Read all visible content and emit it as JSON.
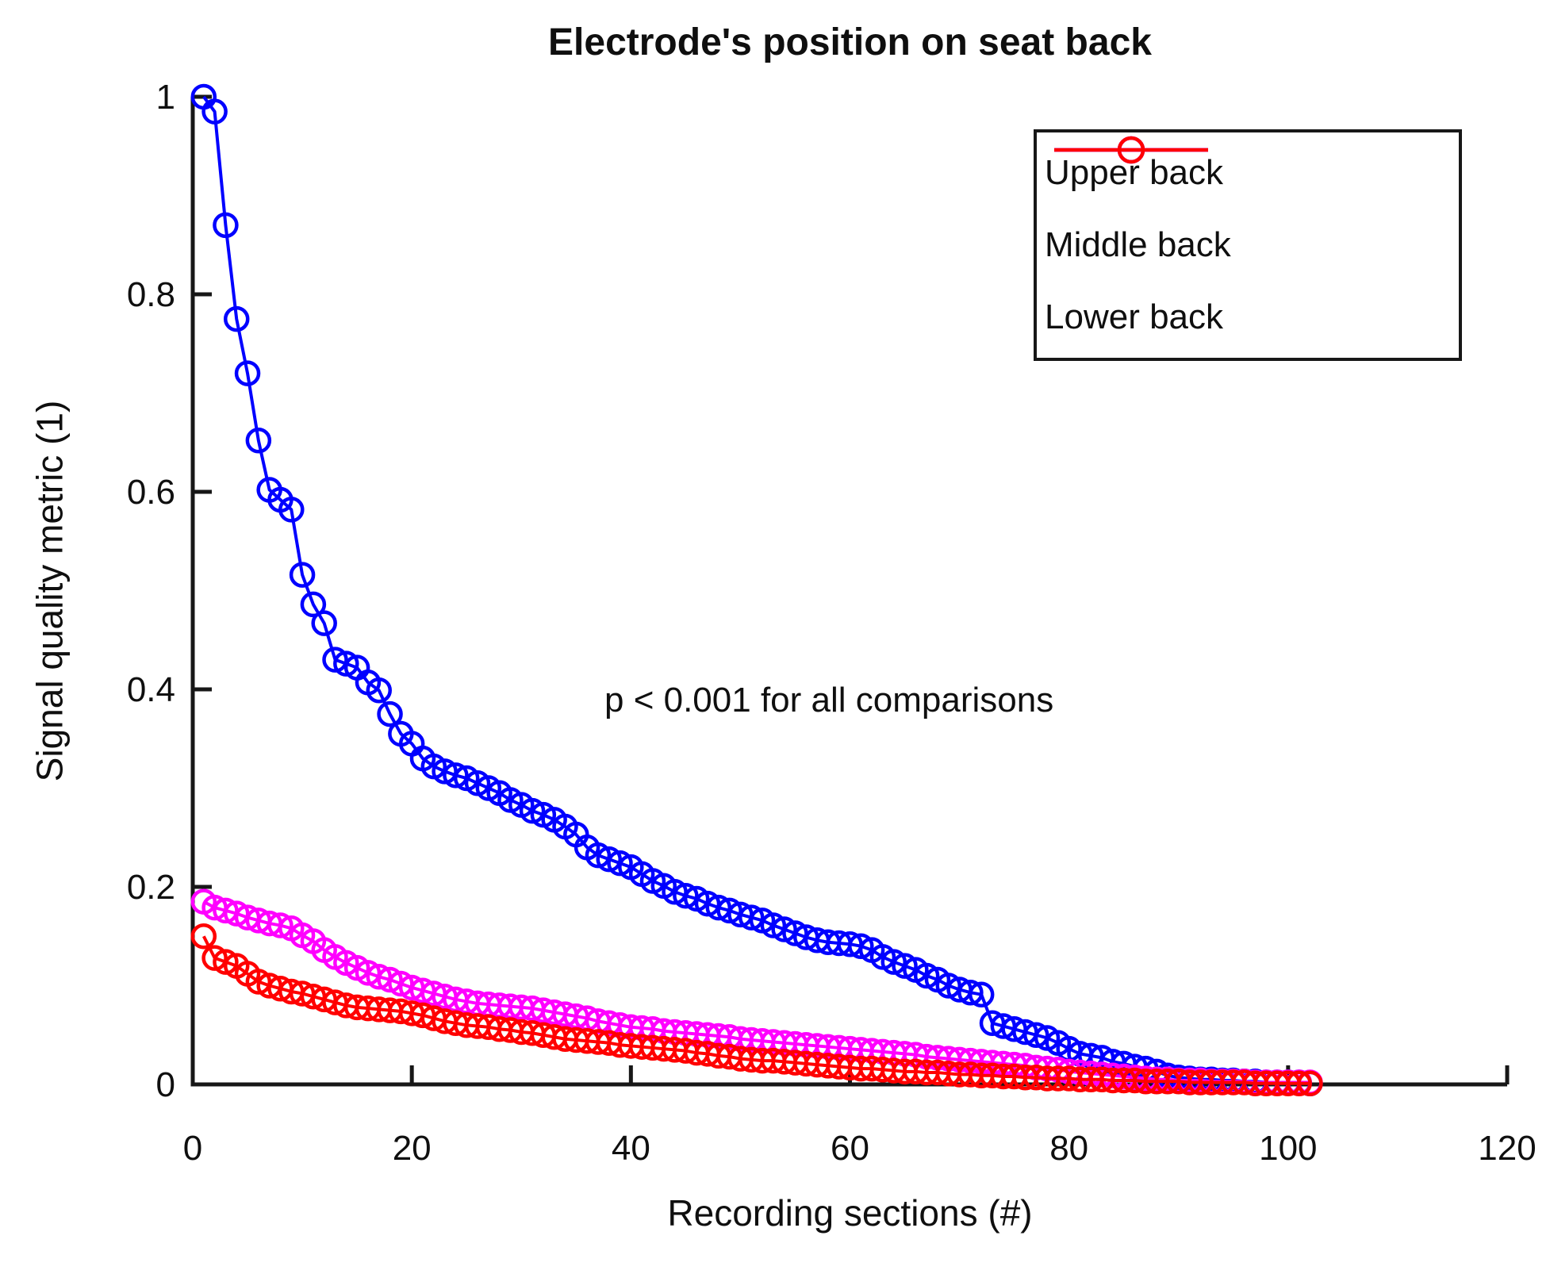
{
  "figure": {
    "background": "#ffffff",
    "axis_color": "#171717",
    "text_color": "#0f0f0f"
  },
  "legend": {
    "position": "upper right",
    "items": [
      {
        "label": "Upper back",
        "color": "#0000ff"
      },
      {
        "label": "Middle back",
        "color": "#ff00ff"
      },
      {
        "label": "Lower back",
        "color": "#ff0000"
      }
    ]
  },
  "chart_data": {
    "type": "line",
    "title": "Electrode's position on seat back",
    "xlabel": "Recording sections (#)",
    "ylabel": "Signal quality metric (1)",
    "annotation": "p < 0.001 for all comparisons",
    "xlim": [
      0,
      120
    ],
    "ylim": [
      0,
      1
    ],
    "xticks": [
      0,
      20,
      40,
      60,
      80,
      100,
      120
    ],
    "yticks": [
      0,
      0.2,
      0.4,
      0.6,
      0.8,
      1
    ],
    "ytick_labels": [
      "0",
      "0.2",
      "0.4",
      "0.6",
      "0.8",
      "1"
    ],
    "grid": false,
    "marker": "o",
    "x_start": 1,
    "legend_position": "upper right",
    "series": [
      {
        "name": "Upper back",
        "color": "#0000ff",
        "values": [
          1.0,
          0.985,
          0.87,
          0.775,
          0.72,
          0.652,
          0.602,
          0.592,
          0.582,
          0.516,
          0.486,
          0.467,
          0.43,
          0.426,
          0.422,
          0.407,
          0.399,
          0.375,
          0.355,
          0.345,
          0.33,
          0.322,
          0.317,
          0.313,
          0.31,
          0.305,
          0.3,
          0.295,
          0.288,
          0.283,
          0.277,
          0.273,
          0.268,
          0.261,
          0.253,
          0.24,
          0.232,
          0.228,
          0.224,
          0.22,
          0.213,
          0.206,
          0.201,
          0.195,
          0.191,
          0.188,
          0.183,
          0.179,
          0.176,
          0.172,
          0.169,
          0.166,
          0.161,
          0.157,
          0.153,
          0.149,
          0.146,
          0.144,
          0.143,
          0.142,
          0.14,
          0.136,
          0.129,
          0.124,
          0.12,
          0.116,
          0.11,
          0.106,
          0.1,
          0.096,
          0.093,
          0.091,
          0.062,
          0.059,
          0.056,
          0.053,
          0.05,
          0.047,
          0.042,
          0.036,
          0.031,
          0.029,
          0.027,
          0.023,
          0.021,
          0.018,
          0.016,
          0.013,
          0.009,
          0.007,
          0.006,
          0.005,
          0.005,
          0.004,
          0.004,
          0.003,
          0.003,
          0.002,
          0.002,
          0.002,
          0.002,
          0.001
        ]
      },
      {
        "name": "Middle back",
        "color": "#ff00ff",
        "values": [
          0.185,
          0.179,
          0.176,
          0.173,
          0.169,
          0.166,
          0.163,
          0.161,
          0.158,
          0.151,
          0.145,
          0.136,
          0.129,
          0.123,
          0.118,
          0.113,
          0.109,
          0.106,
          0.102,
          0.098,
          0.095,
          0.092,
          0.089,
          0.086,
          0.084,
          0.082,
          0.081,
          0.08,
          0.079,
          0.078,
          0.077,
          0.075,
          0.073,
          0.071,
          0.069,
          0.067,
          0.064,
          0.062,
          0.06,
          0.058,
          0.057,
          0.056,
          0.054,
          0.053,
          0.052,
          0.051,
          0.05,
          0.049,
          0.048,
          0.046,
          0.045,
          0.044,
          0.043,
          0.042,
          0.041,
          0.04,
          0.039,
          0.038,
          0.037,
          0.036,
          0.035,
          0.034,
          0.033,
          0.032,
          0.031,
          0.03,
          0.028,
          0.027,
          0.026,
          0.025,
          0.024,
          0.023,
          0.022,
          0.021,
          0.02,
          0.019,
          0.017,
          0.016,
          0.015,
          0.013,
          0.012,
          0.011,
          0.01,
          0.009,
          0.008,
          0.007,
          0.006,
          0.005,
          0.005,
          0.004,
          0.004,
          0.004,
          0.003,
          0.003,
          0.003,
          0.003,
          0.002,
          0.002,
          0.002,
          0.002,
          0.002,
          0.002
        ]
      },
      {
        "name": "Lower back",
        "color": "#ff0000",
        "values": [
          0.15,
          0.128,
          0.124,
          0.12,
          0.112,
          0.104,
          0.1,
          0.097,
          0.094,
          0.092,
          0.089,
          0.086,
          0.083,
          0.08,
          0.078,
          0.077,
          0.076,
          0.075,
          0.074,
          0.072,
          0.07,
          0.067,
          0.064,
          0.062,
          0.06,
          0.059,
          0.058,
          0.056,
          0.055,
          0.053,
          0.052,
          0.05,
          0.048,
          0.046,
          0.045,
          0.044,
          0.043,
          0.042,
          0.04,
          0.039,
          0.038,
          0.037,
          0.036,
          0.035,
          0.034,
          0.032,
          0.031,
          0.029,
          0.028,
          0.026,
          0.025,
          0.024,
          0.024,
          0.023,
          0.022,
          0.021,
          0.02,
          0.019,
          0.018,
          0.017,
          0.016,
          0.016,
          0.015,
          0.014,
          0.013,
          0.013,
          0.012,
          0.012,
          0.011,
          0.01,
          0.01,
          0.009,
          0.009,
          0.008,
          0.008,
          0.007,
          0.007,
          0.006,
          0.006,
          0.006,
          0.005,
          0.005,
          0.005,
          0.004,
          0.004,
          0.004,
          0.003,
          0.003,
          0.003,
          0.003,
          0.002,
          0.002,
          0.002,
          0.002,
          0.002,
          0.002,
          0.001,
          0.001,
          0.001,
          0.001,
          0.001,
          0.001
        ]
      }
    ]
  }
}
